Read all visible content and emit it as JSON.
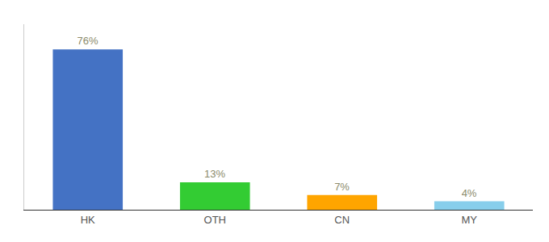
{
  "chart_data": {
    "type": "bar",
    "categories": [
      "HK",
      "OTH",
      "CN",
      "MY"
    ],
    "values": [
      76,
      13,
      7,
      4
    ],
    "value_labels": [
      "76%",
      "13%",
      "7%",
      "4%"
    ],
    "colors": [
      "#4472C4",
      "#33CC33",
      "#FFA500",
      "#87CEEB"
    ],
    "ylim": [
      0,
      88
    ],
    "grid": false,
    "tick_labels": "x"
  }
}
